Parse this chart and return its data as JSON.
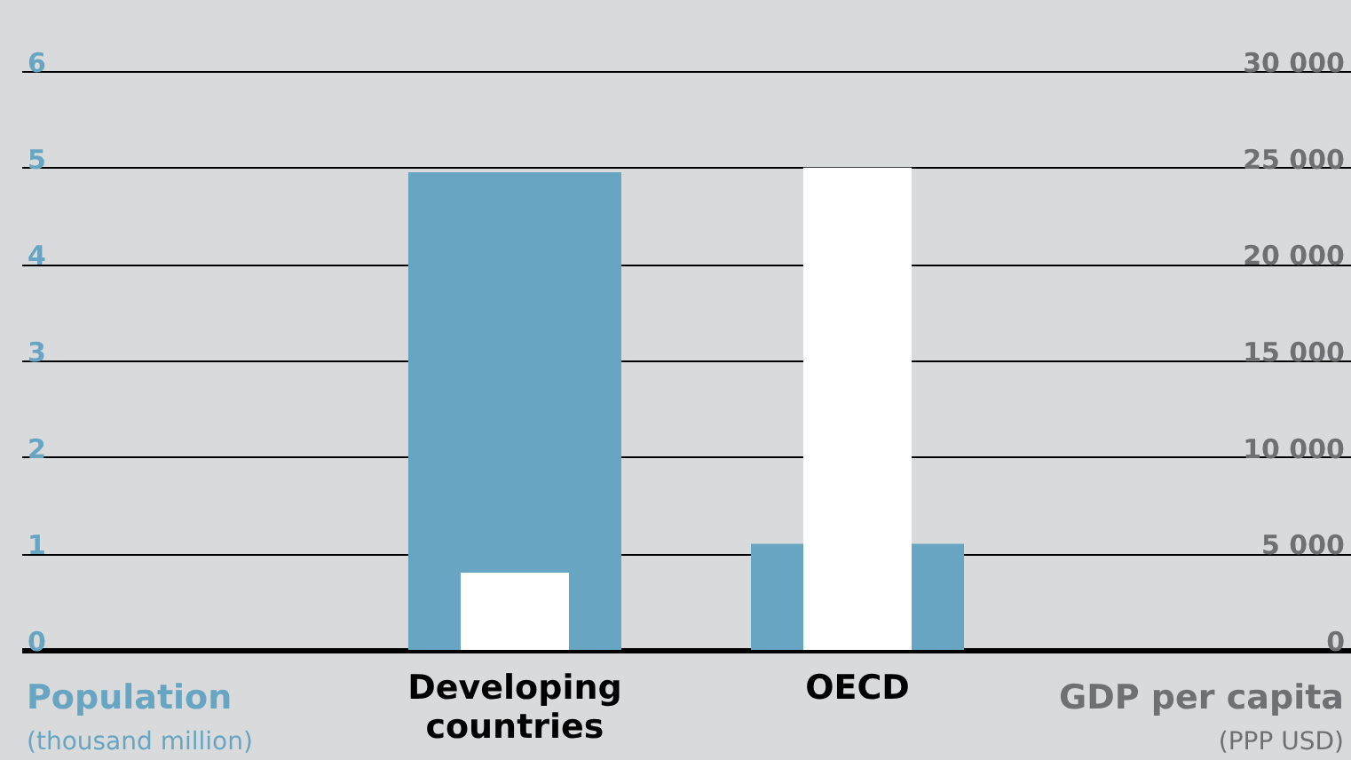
{
  "chart_data": {
    "type": "bar",
    "categories": [
      "Developing countries",
      "OECD"
    ],
    "ylabel": "Population\n(thousand million)",
    "y2label": "GDP per capita\n(PPP USD)",
    "series": [
      {
        "color": "#68a5c3",
        "values": [
          4.95,
          1.1
        ]
      },
      {
        "color": "#ffffff",
        "values": [
          4000,
          25000
        ],
        "axis": "y2"
      }
    ],
    "ylim": [
      0,
      6
    ],
    "yticks": [
      0,
      1,
      2,
      3,
      4,
      5,
      6
    ],
    "y2lim": [
      0,
      30000
    ],
    "y2ticks": [
      {
        "value": 0,
        "label": "0"
      },
      {
        "value": 5000,
        "label": "5 000"
      },
      {
        "value": 10000,
        "label": "10 000"
      },
      {
        "value": 15000,
        "label": "15 000"
      },
      {
        "value": 20000,
        "label": "20 000"
      },
      {
        "value": 25000,
        "label": "25 000"
      },
      {
        "value": 30000,
        "label": "30 000"
      }
    ],
    "grid": "y"
  }
}
